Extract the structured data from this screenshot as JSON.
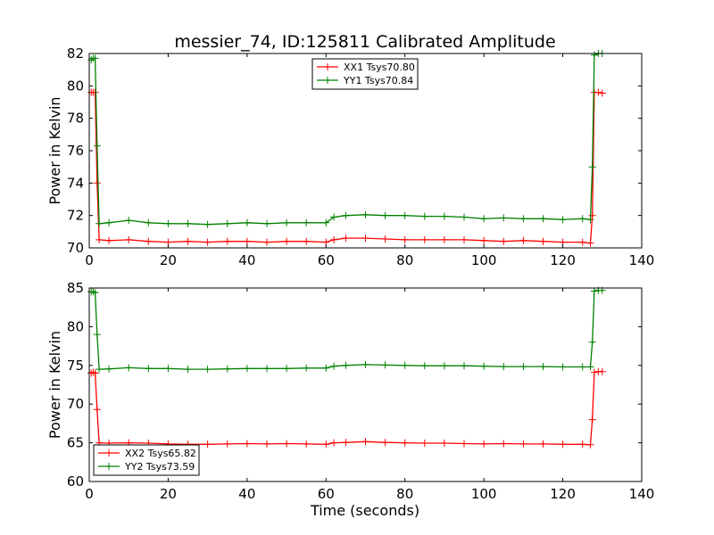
{
  "figure": {
    "title": "messier_74, ID:125811 Calibrated Amplitude",
    "xlabel": "Time (seconds)"
  },
  "colors": {
    "xx": "#ff0000",
    "yy": "#008000",
    "axes": "#000000",
    "background": "#ffffff"
  },
  "chart_data": [
    {
      "type": "line",
      "title": "messier_74, ID:125811 Calibrated Amplitude",
      "xlabel": "",
      "ylabel": "Power in Kelvin",
      "xlim": [
        0,
        140
      ],
      "ylim": [
        70,
        82
      ],
      "xticks": [
        0,
        20,
        40,
        60,
        80,
        100,
        120,
        140
      ],
      "yticks": [
        70,
        72,
        74,
        76,
        78,
        80,
        82
      ],
      "grid": false,
      "legend_position": "upper-center",
      "series": [
        {
          "name": "XX1 Tsys70.80",
          "color": "#ff0000",
          "x": [
            0.5,
            1,
            1.5,
            2,
            2.5,
            5,
            10,
            15,
            20,
            25,
            30,
            35,
            40,
            45,
            50,
            55,
            60,
            62,
            65,
            70,
            75,
            80,
            85,
            90,
            95,
            100,
            105,
            110,
            115,
            120,
            125,
            127,
            127.5,
            128,
            129,
            130
          ],
          "y": [
            79.6,
            79.6,
            79.6,
            74.0,
            70.5,
            70.45,
            70.5,
            70.4,
            70.35,
            70.4,
            70.35,
            70.4,
            70.4,
            70.35,
            70.4,
            70.4,
            70.35,
            70.5,
            70.6,
            70.6,
            70.55,
            70.5,
            70.5,
            70.5,
            70.5,
            70.45,
            70.4,
            70.45,
            70.4,
            70.35,
            70.35,
            70.3,
            72.0,
            79.6,
            79.6,
            79.55
          ]
        },
        {
          "name": "YY1 Tsys70.84",
          "color": "#008000",
          "x": [
            0.5,
            1,
            1.5,
            2,
            2.5,
            5,
            10,
            15,
            20,
            25,
            30,
            35,
            40,
            45,
            50,
            55,
            60,
            62,
            65,
            70,
            75,
            80,
            85,
            90,
            95,
            100,
            105,
            110,
            115,
            120,
            125,
            127,
            127.5,
            128,
            129,
            130
          ],
          "y": [
            81.6,
            81.7,
            81.7,
            76.3,
            71.5,
            71.55,
            71.7,
            71.55,
            71.5,
            71.5,
            71.45,
            71.5,
            71.55,
            71.5,
            71.55,
            71.55,
            71.55,
            71.9,
            72.0,
            72.05,
            72.0,
            72.0,
            71.95,
            71.95,
            71.9,
            71.8,
            71.85,
            71.8,
            71.8,
            71.75,
            71.8,
            71.75,
            75.0,
            81.9,
            82.0,
            82.0
          ]
        }
      ]
    },
    {
      "type": "line",
      "title": "",
      "xlabel": "Time (seconds)",
      "ylabel": "Power in Kelvin",
      "xlim": [
        0,
        140
      ],
      "ylim": [
        60,
        85
      ],
      "xticks": [
        0,
        20,
        40,
        60,
        80,
        100,
        120,
        140
      ],
      "yticks": [
        60,
        65,
        70,
        75,
        80,
        85
      ],
      "grid": false,
      "legend_position": "lower-left",
      "series": [
        {
          "name": "XX2 Tsys65.82",
          "color": "#ff0000",
          "x": [
            0.5,
            1,
            1.5,
            2,
            2.5,
            5,
            10,
            15,
            20,
            25,
            30,
            35,
            40,
            45,
            50,
            55,
            60,
            62,
            65,
            70,
            75,
            80,
            85,
            90,
            95,
            100,
            105,
            110,
            115,
            120,
            125,
            127,
            127.5,
            128,
            129,
            130
          ],
          "y": [
            74.0,
            74.1,
            74.0,
            69.3,
            65.0,
            64.95,
            65.0,
            64.95,
            64.85,
            64.8,
            64.8,
            64.85,
            64.9,
            64.85,
            64.9,
            64.85,
            64.8,
            65.0,
            65.05,
            65.15,
            65.05,
            65.0,
            64.95,
            64.95,
            64.9,
            64.85,
            64.9,
            64.85,
            64.85,
            64.8,
            64.8,
            64.75,
            68.0,
            74.1,
            74.2,
            74.2
          ]
        },
        {
          "name": "YY2 Tsys73.59",
          "color": "#008000",
          "x": [
            0.5,
            1,
            1.5,
            2,
            2.5,
            5,
            10,
            15,
            20,
            25,
            30,
            35,
            40,
            45,
            50,
            55,
            60,
            62,
            65,
            70,
            75,
            80,
            85,
            90,
            95,
            100,
            105,
            110,
            115,
            120,
            125,
            127,
            127.5,
            128,
            129,
            130
          ],
          "y": [
            84.5,
            84.5,
            84.4,
            79.0,
            74.5,
            74.55,
            74.7,
            74.6,
            74.6,
            74.5,
            74.5,
            74.55,
            74.6,
            74.6,
            74.6,
            74.65,
            74.65,
            74.9,
            75.0,
            75.1,
            75.05,
            75.0,
            74.95,
            74.95,
            74.95,
            74.9,
            74.85,
            74.85,
            74.85,
            74.8,
            74.8,
            74.8,
            78.0,
            84.6,
            84.7,
            84.7
          ]
        }
      ]
    }
  ]
}
